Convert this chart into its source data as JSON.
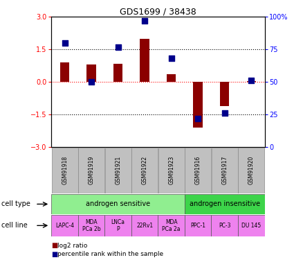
{
  "title": "GDS1699 / 38438",
  "samples": [
    "GSM91918",
    "GSM91919",
    "GSM91921",
    "GSM91922",
    "GSM91923",
    "GSM91916",
    "GSM91917",
    "GSM91920"
  ],
  "log2_ratio": [
    0.9,
    0.8,
    0.85,
    2.0,
    0.35,
    -2.1,
    -1.1,
    0.05
  ],
  "percentile_rank": [
    80,
    50,
    77,
    97,
    68,
    22,
    26,
    51
  ],
  "ylim_left": [
    -3,
    3
  ],
  "ylim_right": [
    0,
    100
  ],
  "yticks_left": [
    -3,
    -1.5,
    0,
    1.5,
    3
  ],
  "yticks_right": [
    0,
    25,
    50,
    75,
    100
  ],
  "cell_type_groups": [
    {
      "label": "androgen sensitive",
      "start": 0,
      "end": 5,
      "color": "#90EE90"
    },
    {
      "label": "androgen insensitive",
      "start": 5,
      "end": 8,
      "color": "#3DD44A"
    }
  ],
  "cell_line_groups": [
    {
      "label": "LAPC-4",
      "start": 0,
      "end": 1,
      "color": "#EE82EE"
    },
    {
      "label": "MDA\nPCa 2b",
      "start": 1,
      "end": 2,
      "color": "#EE82EE"
    },
    {
      "label": "LNCa\nP",
      "start": 2,
      "end": 3,
      "color": "#EE82EE"
    },
    {
      "label": "22Rv1",
      "start": 3,
      "end": 4,
      "color": "#EE82EE"
    },
    {
      "label": "MDA\nPCa 2a",
      "start": 4,
      "end": 5,
      "color": "#EE82EE"
    },
    {
      "label": "PPC-1",
      "start": 5,
      "end": 6,
      "color": "#EE82EE"
    },
    {
      "label": "PC-3",
      "start": 6,
      "end": 7,
      "color": "#EE82EE"
    },
    {
      "label": "DU 145",
      "start": 7,
      "end": 8,
      "color": "#EE82EE"
    }
  ],
  "bar_color": "#8B0000",
  "dot_color": "#00008B",
  "bar_width": 0.35,
  "dot_size": 40,
  "left_ytick_color": "red",
  "right_ytick_color": "blue",
  "hline_zero_color": "red",
  "hline_other_color": "black",
  "legend_red_label": "log2 ratio",
  "legend_blue_label": "percentile rank within the sample",
  "cell_type_label": "cell type",
  "cell_line_label": "cell line",
  "bg_color": "#FFFFFF",
  "sample_box_color": "#C0C0C0"
}
